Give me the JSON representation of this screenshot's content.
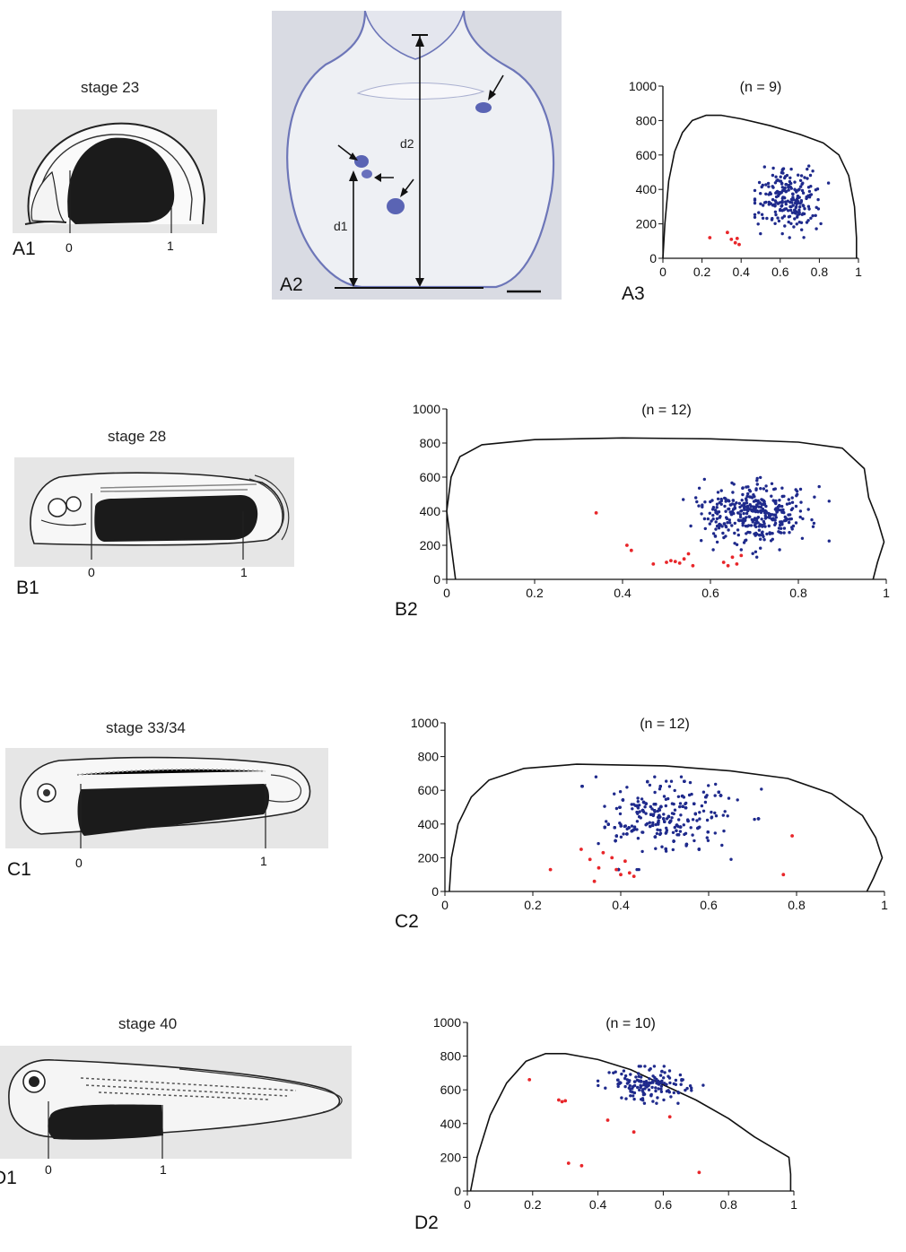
{
  "stage_titles": {
    "a": "stage 23",
    "b": "stage 28",
    "c": "stage 33/34",
    "d": "stage 40"
  },
  "panel_labels": {
    "a1": "A1",
    "a2": "A2",
    "a3": "A3",
    "b1": "B1",
    "b2": "B2",
    "c1": "C1",
    "c2": "C2",
    "d1": "D1",
    "d2": "D2"
  },
  "axis_marks": {
    "zero": "0",
    "one": "1"
  },
  "section_labels": {
    "d1": "d1",
    "d2": "d2"
  },
  "colors": {
    "blue_points": "#1f2a8c",
    "red_points": "#e8262a",
    "embryo_fill": "#1b1b1b",
    "section_stain": "#5a64b4",
    "section_bg": "#d8dae2"
  },
  "chart_data": [
    {
      "id": "A3",
      "type": "scatter",
      "title": "(n = 9)",
      "xlim": [
        0,
        1
      ],
      "ylim": [
        0,
        1000
      ],
      "xticks": [
        0,
        0.2,
        0.4,
        0.6,
        0.8,
        1
      ],
      "xtick_labels": [
        "0",
        "0.2",
        "0.4",
        "0.6",
        "0.8",
        "1"
      ],
      "yticks": [
        0,
        200,
        400,
        600,
        800,
        1000
      ],
      "ytick_labels": [
        "0",
        "200",
        "400",
        "600",
        "800",
        "1000"
      ],
      "outline": [
        [
          0.0,
          0
        ],
        [
          0.01,
          200
        ],
        [
          0.03,
          450
        ],
        [
          0.06,
          620
        ],
        [
          0.1,
          730
        ],
        [
          0.15,
          800
        ],
        [
          0.22,
          830
        ],
        [
          0.3,
          830
        ],
        [
          0.4,
          810
        ],
        [
          0.55,
          770
        ],
        [
          0.7,
          720
        ],
        [
          0.82,
          670
        ],
        [
          0.9,
          600
        ],
        [
          0.95,
          480
        ],
        [
          0.98,
          300
        ],
        [
          0.99,
          120
        ],
        [
          0.99,
          0
        ]
      ],
      "series": [
        {
          "color": "blue",
          "cluster": {
            "cx": 0.64,
            "cy": 340,
            "sx": 0.075,
            "sy": 90,
            "xmin": 0.47,
            "xmax": 0.92,
            "ymin": 120,
            "ymax": 650,
            "n": 230,
            "seed": 11
          }
        },
        {
          "color": "red",
          "points": [
            [
              0.24,
              120
            ],
            [
              0.33,
              150
            ],
            [
              0.35,
              110
            ],
            [
              0.37,
              90
            ],
            [
              0.38,
              115
            ],
            [
              0.39,
              80
            ]
          ]
        }
      ]
    },
    {
      "id": "B2",
      "type": "scatter",
      "title": "(n = 12)",
      "xlim": [
        0,
        1
      ],
      "ylim": [
        0,
        1000
      ],
      "xticks": [
        0,
        0.2,
        0.4,
        0.6,
        0.8,
        1
      ],
      "xtick_labels": [
        "0",
        "0.2",
        "0.4",
        "0.6",
        "0.8",
        "1"
      ],
      "yticks": [
        0,
        200,
        400,
        600,
        800,
        1000
      ],
      "ytick_labels": [
        "0",
        "200",
        "400",
        "600",
        "800",
        "1000"
      ],
      "outline": [
        [
          0.02,
          0
        ],
        [
          0.01,
          200
        ],
        [
          0.0,
          400
        ],
        [
          0.01,
          600
        ],
        [
          0.03,
          720
        ],
        [
          0.08,
          790
        ],
        [
          0.2,
          820
        ],
        [
          0.4,
          830
        ],
        [
          0.6,
          825
        ],
        [
          0.8,
          805
        ],
        [
          0.9,
          770
        ],
        [
          0.95,
          650
        ],
        [
          0.96,
          480
        ],
        [
          0.98,
          350
        ],
        [
          0.995,
          220
        ],
        [
          0.98,
          100
        ],
        [
          0.97,
          0
        ]
      ],
      "series": [
        {
          "color": "blue",
          "cluster": {
            "cx": 0.7,
            "cy": 380,
            "sx": 0.06,
            "sy": 85,
            "xmin": 0.52,
            "xmax": 0.87,
            "ymin": 70,
            "ymax": 670,
            "n": 380,
            "seed": 23
          }
        },
        {
          "color": "red",
          "points": [
            [
              0.34,
              390
            ],
            [
              0.41,
              200
            ],
            [
              0.42,
              170
            ],
            [
              0.47,
              90
            ],
            [
              0.5,
              100
            ],
            [
              0.51,
              110
            ],
            [
              0.52,
              105
            ],
            [
              0.53,
              95
            ],
            [
              0.54,
              120
            ],
            [
              0.55,
              150
            ],
            [
              0.56,
              80
            ],
            [
              0.63,
              100
            ],
            [
              0.64,
              80
            ],
            [
              0.65,
              130
            ],
            [
              0.66,
              90
            ],
            [
              0.67,
              140
            ]
          ]
        }
      ]
    },
    {
      "id": "C2",
      "type": "scatter",
      "title": "(n = 12)",
      "xlim": [
        0,
        1
      ],
      "ylim": [
        0,
        1000
      ],
      "xticks": [
        0,
        0.2,
        0.4,
        0.6,
        0.8,
        1
      ],
      "xtick_labels": [
        "0",
        "0.2",
        "0.4",
        "0.6",
        "0.8",
        "1"
      ],
      "yticks": [
        0,
        200,
        400,
        600,
        800,
        1000
      ],
      "ytick_labels": [
        "0",
        "200",
        "400",
        "600",
        "800",
        "1000"
      ],
      "outline": [
        [
          0.01,
          0
        ],
        [
          0.015,
          200
        ],
        [
          0.03,
          400
        ],
        [
          0.06,
          560
        ],
        [
          0.1,
          660
        ],
        [
          0.18,
          730
        ],
        [
          0.3,
          755
        ],
        [
          0.5,
          745
        ],
        [
          0.65,
          715
        ],
        [
          0.78,
          670
        ],
        [
          0.88,
          580
        ],
        [
          0.95,
          450
        ],
        [
          0.98,
          320
        ],
        [
          0.995,
          200
        ],
        [
          0.975,
          80
        ],
        [
          0.96,
          0
        ]
      ],
      "series": [
        {
          "color": "blue",
          "cluster": {
            "cx": 0.5,
            "cy": 440,
            "sx": 0.08,
            "sy": 110,
            "xmin": 0.25,
            "xmax": 0.72,
            "ymin": 130,
            "ymax": 680,
            "n": 620,
            "seed": 37
          }
        },
        {
          "color": "red",
          "points": [
            [
              0.24,
              130
            ],
            [
              0.31,
              250
            ],
            [
              0.33,
              190
            ],
            [
              0.34,
              60
            ],
            [
              0.35,
              140
            ],
            [
              0.36,
              230
            ],
            [
              0.38,
              200
            ],
            [
              0.39,
              130
            ],
            [
              0.4,
              100
            ],
            [
              0.41,
              180
            ],
            [
              0.42,
              110
            ],
            [
              0.43,
              90
            ],
            [
              0.77,
              100
            ],
            [
              0.79,
              330
            ]
          ]
        }
      ]
    },
    {
      "id": "D2",
      "type": "scatter",
      "title": "(n = 10)",
      "xlim": [
        0,
        1
      ],
      "ylim": [
        0,
        1000
      ],
      "xticks": [
        0,
        0.2,
        0.4,
        0.6,
        0.8,
        1
      ],
      "xtick_labels": [
        "0",
        "0.2",
        "0.4",
        "0.6",
        "0.8",
        "1"
      ],
      "yticks": [
        0,
        200,
        400,
        600,
        800,
        1000
      ],
      "ytick_labels": [
        "0",
        "200",
        "400",
        "600",
        "800",
        "1000"
      ],
      "outline": [
        [
          0.01,
          0
        ],
        [
          0.03,
          200
        ],
        [
          0.07,
          450
        ],
        [
          0.12,
          640
        ],
        [
          0.18,
          770
        ],
        [
          0.24,
          815
        ],
        [
          0.3,
          815
        ],
        [
          0.4,
          780
        ],
        [
          0.5,
          720
        ],
        [
          0.6,
          630
        ],
        [
          0.7,
          540
        ],
        [
          0.8,
          430
        ],
        [
          0.88,
          320
        ],
        [
          0.985,
          200
        ],
        [
          0.99,
          100
        ],
        [
          0.99,
          0
        ]
      ],
      "series": [
        {
          "color": "blue",
          "cluster": {
            "cx": 0.56,
            "cy": 630,
            "sx": 0.06,
            "sy": 50,
            "xmin": 0.4,
            "xmax": 0.75,
            "ymin": 520,
            "ymax": 740,
            "n": 150,
            "seed": 53
          }
        },
        {
          "color": "red",
          "points": [
            [
              0.19,
              660
            ],
            [
              0.28,
              540
            ],
            [
              0.29,
              530
            ],
            [
              0.3,
              535
            ],
            [
              0.31,
              165
            ],
            [
              0.35,
              150
            ],
            [
              0.43,
              420
            ],
            [
              0.51,
              350
            ],
            [
              0.62,
              440
            ],
            [
              0.71,
              110
            ]
          ]
        }
      ]
    }
  ]
}
